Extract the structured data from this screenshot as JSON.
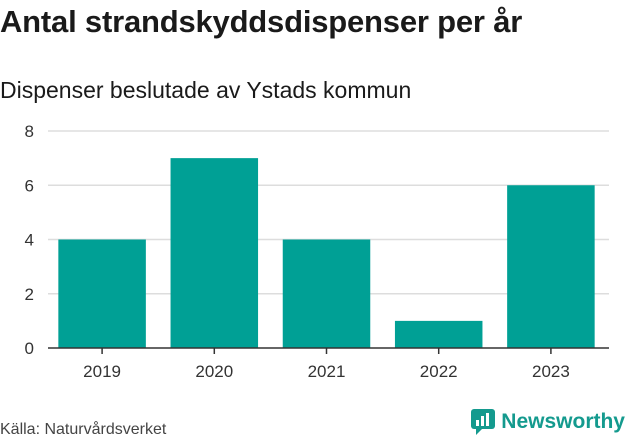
{
  "header": {
    "title": "Antal strandskyddsdispenser per år",
    "subtitle": "Dispenser beslutade av Ystads kommun"
  },
  "footer": {
    "source": "Källa: Naturvårdsverket",
    "brand": "Newsworthy",
    "brand_icon": "newsworthy-logo-icon"
  },
  "colors": {
    "bar": "#00a095",
    "grid": "#dddddd",
    "axis": "#333333",
    "brand": "#149a8e"
  },
  "chart_data": {
    "type": "bar",
    "title": "Antal strandskyddsdispenser per år",
    "subtitle": "Dispenser beslutade av Ystads kommun",
    "categories": [
      "2019",
      "2020",
      "2021",
      "2022",
      "2023"
    ],
    "values": [
      4,
      7,
      4,
      1,
      6
    ],
    "xlabel": "",
    "ylabel": "",
    "ylim": [
      0,
      8
    ],
    "yticks": [
      0,
      2,
      4,
      6,
      8
    ],
    "grid": true,
    "legend": "none"
  }
}
